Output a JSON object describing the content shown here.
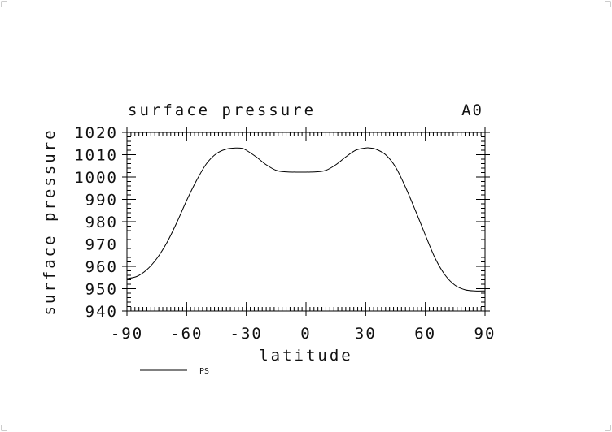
{
  "chart_data": {
    "type": "line",
    "title": "surface pressure",
    "panel_label": "A0",
    "xlabel": "latitude",
    "ylabel": "surface pressure",
    "xlim": [
      -90,
      90
    ],
    "ylim": [
      940,
      1020
    ],
    "x_ticks": [
      -90,
      -60,
      -30,
      0,
      30,
      60,
      90
    ],
    "x_tick_labels": [
      "-90",
      "-60",
      "-30",
      "0",
      "30",
      "60",
      "90"
    ],
    "y_ticks": [
      940,
      950,
      960,
      970,
      980,
      990,
      1000,
      1010,
      1020
    ],
    "y_tick_labels": [
      "940",
      "950",
      "960",
      "970",
      "980",
      "990",
      "1000",
      "1010",
      "1020"
    ],
    "grid": false,
    "legend_position": "bottom-left",
    "series": [
      {
        "name": "PS",
        "color": "#000000",
        "x": [
          -90,
          -85,
          -80,
          -75,
          -70,
          -65,
          -60,
          -55,
          -50,
          -45,
          -40,
          -35,
          -32,
          -30,
          -25,
          -20,
          -15,
          -10,
          -5,
          0,
          5,
          10,
          15,
          20,
          25,
          30,
          32,
          35,
          40,
          45,
          50,
          55,
          60,
          65,
          70,
          75,
          80,
          85,
          90
        ],
        "y": [
          954.5,
          955.5,
          958.5,
          963.5,
          970.5,
          979.5,
          989.5,
          998.5,
          1006.0,
          1010.5,
          1012.5,
          1013.0,
          1012.8,
          1012.0,
          1009.0,
          1005.5,
          1003.0,
          1002.3,
          1002.2,
          1002.2,
          1002.3,
          1003.0,
          1005.5,
          1009.0,
          1012.0,
          1013.0,
          1013.0,
          1012.5,
          1010.0,
          1004.5,
          995.5,
          985.0,
          974.0,
          963.5,
          956.0,
          951.5,
          949.5,
          949.0,
          949.0
        ]
      }
    ]
  }
}
